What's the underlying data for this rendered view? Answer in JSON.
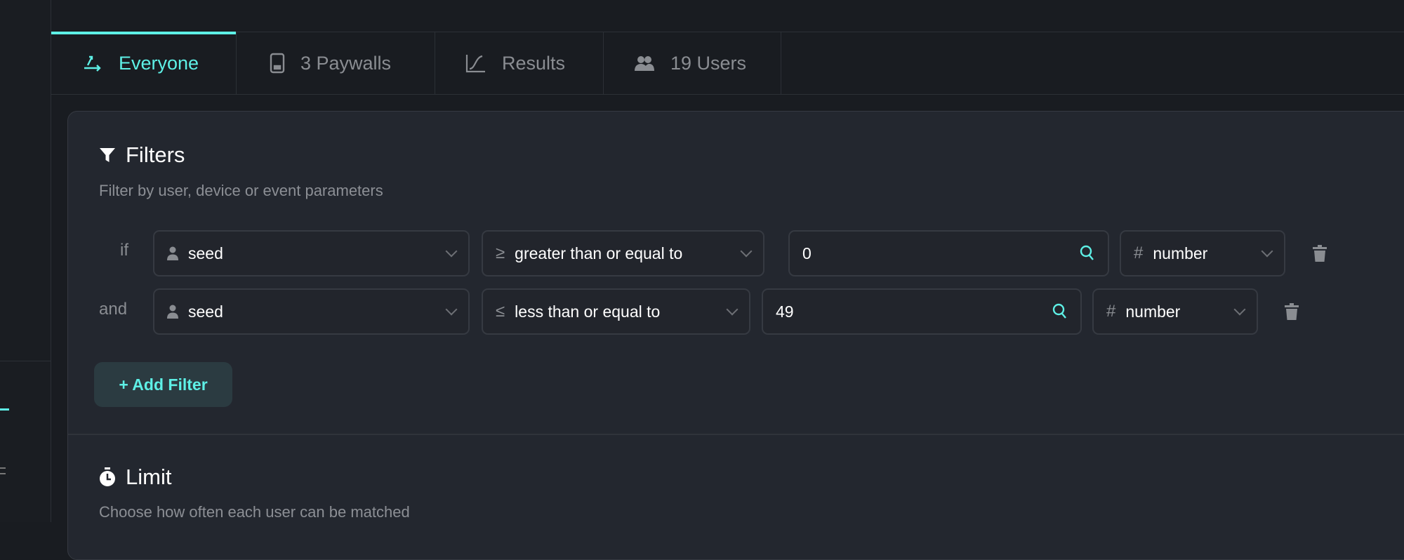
{
  "tabs": [
    {
      "label": "Everyone",
      "icon": "split-arrows-icon",
      "active": true
    },
    {
      "label": "3 Paywalls",
      "icon": "phone-icon",
      "active": false
    },
    {
      "label": "Results",
      "icon": "chart-line-icon",
      "active": false
    },
    {
      "label": "19 Users",
      "icon": "users-icon",
      "active": false
    }
  ],
  "filters": {
    "title": "Filters",
    "subtitle": "Filter by user, device or event parameters",
    "rows": [
      {
        "connector": "if",
        "property": "seed",
        "operator_symbol": "≥",
        "operator": "greater than or equal to",
        "value": "0",
        "type_symbol": "#",
        "type": "number"
      },
      {
        "connector": "and",
        "property": "seed",
        "operator_symbol": "≤",
        "operator": "less than or equal to",
        "value": "49",
        "type_symbol": "#",
        "type": "number"
      }
    ],
    "add_label": "+ Add Filter"
  },
  "limit": {
    "title": "Limit",
    "subtitle": "Choose how often each user can be matched"
  },
  "colors": {
    "accent": "#5ef0e6",
    "background": "#191c21",
    "card": "#23272f"
  }
}
